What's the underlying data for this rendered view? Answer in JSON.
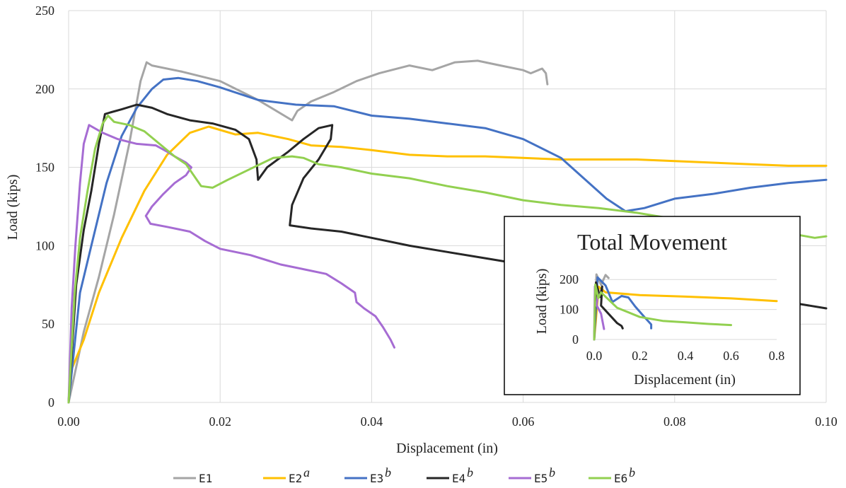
{
  "chart_data": {
    "type": "line",
    "xlabel": "Displacement (in)",
    "ylabel": "Load (kips)",
    "xlim": [
      0,
      0.1
    ],
    "ylim": [
      0,
      250
    ],
    "x_ticks": [
      "0.00",
      "0.02",
      "0.04",
      "0.06",
      "0.08",
      "0.10"
    ],
    "y_ticks": [
      "0",
      "50",
      "100",
      "150",
      "200",
      "250"
    ],
    "grid": true,
    "legend_position": "bottom",
    "series": [
      {
        "name": "E1",
        "sup": "",
        "color": "#a5a5a5",
        "points": [
          [
            0,
            0
          ],
          [
            0.002,
            45
          ],
          [
            0.004,
            80
          ],
          [
            0.006,
            120
          ],
          [
            0.008,
            165
          ],
          [
            0.0095,
            205
          ],
          [
            0.0103,
            217
          ],
          [
            0.011,
            215
          ],
          [
            0.015,
            211
          ],
          [
            0.02,
            205
          ],
          [
            0.025,
            193
          ],
          [
            0.0295,
            180
          ],
          [
            0.0302,
            186
          ],
          [
            0.032,
            192
          ],
          [
            0.035,
            198
          ],
          [
            0.038,
            205
          ],
          [
            0.041,
            210
          ],
          [
            0.045,
            215
          ],
          [
            0.048,
            212
          ],
          [
            0.051,
            217
          ],
          [
            0.054,
            218
          ],
          [
            0.057,
            215
          ],
          [
            0.06,
            212
          ],
          [
            0.061,
            210
          ],
          [
            0.0625,
            213
          ],
          [
            0.063,
            210
          ],
          [
            0.0632,
            203
          ]
        ]
      },
      {
        "name": "E2",
        "sup": "a",
        "color": "#ffc000",
        "points": [
          [
            0,
            0
          ],
          [
            0.0003,
            20
          ],
          [
            0.002,
            40
          ],
          [
            0.004,
            70
          ],
          [
            0.007,
            105
          ],
          [
            0.01,
            135
          ],
          [
            0.013,
            158
          ],
          [
            0.016,
            172
          ],
          [
            0.0185,
            176
          ],
          [
            0.022,
            171
          ],
          [
            0.025,
            172
          ],
          [
            0.029,
            168
          ],
          [
            0.032,
            164
          ],
          [
            0.036,
            163
          ],
          [
            0.04,
            161
          ],
          [
            0.045,
            158
          ],
          [
            0.05,
            157
          ],
          [
            0.055,
            157
          ],
          [
            0.06,
            156
          ],
          [
            0.065,
            155
          ],
          [
            0.07,
            155
          ],
          [
            0.075,
            155
          ],
          [
            0.08,
            154
          ],
          [
            0.085,
            153
          ],
          [
            0.09,
            152
          ],
          [
            0.095,
            151
          ],
          [
            0.1,
            151
          ]
        ]
      },
      {
        "name": "E3",
        "sup": "b",
        "color": "#4472c4",
        "points": [
          [
            0,
            0
          ],
          [
            0.0015,
            70
          ],
          [
            0.003,
            100
          ],
          [
            0.005,
            140
          ],
          [
            0.007,
            170
          ],
          [
            0.009,
            188
          ],
          [
            0.011,
            200
          ],
          [
            0.0125,
            206
          ],
          [
            0.0145,
            207
          ],
          [
            0.017,
            205
          ],
          [
            0.02,
            201
          ],
          [
            0.025,
            193
          ],
          [
            0.03,
            190
          ],
          [
            0.035,
            189
          ],
          [
            0.04,
            183
          ],
          [
            0.045,
            181
          ],
          [
            0.05,
            178
          ],
          [
            0.055,
            175
          ],
          [
            0.06,
            168
          ],
          [
            0.065,
            156
          ],
          [
            0.068,
            143
          ],
          [
            0.071,
            130
          ],
          [
            0.0735,
            122
          ],
          [
            0.076,
            124
          ],
          [
            0.08,
            130
          ],
          [
            0.085,
            133
          ],
          [
            0.09,
            137
          ],
          [
            0.095,
            140
          ],
          [
            0.1,
            142
          ]
        ]
      },
      {
        "name": "E4",
        "sup": "b",
        "color": "#262626",
        "points": [
          [
            0,
            0
          ],
          [
            0.001,
            75
          ],
          [
            0.002,
            110
          ],
          [
            0.003,
            135
          ],
          [
            0.004,
            165
          ],
          [
            0.0048,
            184
          ],
          [
            0.0055,
            185
          ],
          [
            0.007,
            187
          ],
          [
            0.009,
            190
          ],
          [
            0.011,
            188
          ],
          [
            0.013,
            184
          ],
          [
            0.016,
            180
          ],
          [
            0.019,
            178
          ],
          [
            0.022,
            174
          ],
          [
            0.0238,
            168
          ],
          [
            0.0248,
            155
          ],
          [
            0.025,
            142
          ],
          [
            0.0262,
            150
          ],
          [
            0.029,
            160
          ],
          [
            0.031,
            168
          ],
          [
            0.033,
            175
          ],
          [
            0.0348,
            177
          ],
          [
            0.0346,
            168
          ],
          [
            0.033,
            155
          ],
          [
            0.031,
            143
          ],
          [
            0.0295,
            126
          ],
          [
            0.0292,
            113
          ],
          [
            0.032,
            111
          ],
          [
            0.036,
            109
          ],
          [
            0.04,
            105
          ],
          [
            0.045,
            100
          ],
          [
            0.05,
            96
          ],
          [
            0.055,
            92
          ],
          [
            0.06,
            88
          ],
          [
            0.065,
            84
          ],
          [
            0.07,
            80
          ],
          [
            0.075,
            76
          ],
          [
            0.08,
            72
          ],
          [
            0.085,
            70
          ],
          [
            0.09,
            66
          ],
          [
            0.095,
            64
          ],
          [
            0.1,
            60
          ]
        ]
      },
      {
        "name": "E5",
        "sup": "b",
        "color": "#a66cd3",
        "points": [
          [
            0,
            0
          ],
          [
            0.0004,
            60
          ],
          [
            0.0009,
            100
          ],
          [
            0.0015,
            140
          ],
          [
            0.002,
            165
          ],
          [
            0.0027,
            177
          ],
          [
            0.0045,
            172
          ],
          [
            0.0065,
            168
          ],
          [
            0.009,
            165
          ],
          [
            0.0115,
            164
          ],
          [
            0.013,
            160
          ],
          [
            0.014,
            157
          ],
          [
            0.0155,
            153
          ],
          [
            0.0162,
            150
          ],
          [
            0.0155,
            145
          ],
          [
            0.014,
            140
          ],
          [
            0.0125,
            133
          ],
          [
            0.011,
            125
          ],
          [
            0.0102,
            119
          ],
          [
            0.0108,
            114
          ],
          [
            0.013,
            112
          ],
          [
            0.016,
            109
          ],
          [
            0.018,
            103
          ],
          [
            0.02,
            98
          ],
          [
            0.024,
            94
          ],
          [
            0.028,
            88
          ],
          [
            0.031,
            85
          ],
          [
            0.034,
            82
          ],
          [
            0.036,
            76
          ],
          [
            0.0378,
            70
          ],
          [
            0.038,
            64
          ],
          [
            0.039,
            60
          ],
          [
            0.0405,
            55
          ],
          [
            0.0415,
            48
          ],
          [
            0.0425,
            40
          ],
          [
            0.043,
            35
          ]
        ]
      },
      {
        "name": "E6",
        "sup": "b",
        "color": "#92d050",
        "points": [
          [
            0,
            0
          ],
          [
            0.0008,
            70
          ],
          [
            0.0015,
            105
          ],
          [
            0.0025,
            135
          ],
          [
            0.0035,
            162
          ],
          [
            0.0045,
            178
          ],
          [
            0.0052,
            183
          ],
          [
            0.006,
            179
          ],
          [
            0.008,
            177
          ],
          [
            0.01,
            173
          ],
          [
            0.012,
            165
          ],
          [
            0.014,
            157
          ],
          [
            0.0155,
            152
          ],
          [
            0.0165,
            145
          ],
          [
            0.0175,
            138
          ],
          [
            0.019,
            137
          ],
          [
            0.021,
            142
          ],
          [
            0.024,
            149
          ],
          [
            0.027,
            156
          ],
          [
            0.0295,
            157
          ],
          [
            0.031,
            156
          ],
          [
            0.033,
            152
          ],
          [
            0.036,
            150
          ],
          [
            0.04,
            146
          ],
          [
            0.045,
            143
          ],
          [
            0.05,
            138
          ],
          [
            0.055,
            134
          ],
          [
            0.06,
            129
          ],
          [
            0.065,
            126
          ],
          [
            0.07,
            124
          ],
          [
            0.075,
            121
          ],
          [
            0.08,
            117
          ],
          [
            0.085,
            113
          ],
          [
            0.09,
            110
          ],
          [
            0.095,
            108
          ],
          [
            0.0985,
            105
          ],
          [
            0.1,
            106
          ]
        ]
      }
    ],
    "inset": {
      "title": "Total Movement",
      "xlabel": "Displacement (in)",
      "ylabel": "Load (kips)",
      "xlim": [
        0,
        0.8
      ],
      "ylim": [
        0,
        250
      ],
      "x_ticks": [
        "0.0",
        "0.2",
        "0.4",
        "0.6",
        "0.8"
      ],
      "y_ticks": [
        "0",
        "100",
        "200"
      ],
      "series": [
        {
          "name": "E1",
          "color": "#a5a5a5",
          "points": [
            [
              0,
              0
            ],
            [
              0.01,
              217
            ],
            [
              0.03,
              182
            ],
            [
              0.05,
              215
            ],
            [
              0.063,
              205
            ]
          ]
        },
        {
          "name": "E2",
          "color": "#ffc000",
          "points": [
            [
              0,
              0
            ],
            [
              0.02,
              176
            ],
            [
              0.05,
              157
            ],
            [
              0.2,
              148
            ],
            [
              0.4,
              143
            ],
            [
              0.6,
              137
            ],
            [
              0.8,
              128
            ]
          ]
        },
        {
          "name": "E3",
          "color": "#4472c4",
          "points": [
            [
              0,
              0
            ],
            [
              0.015,
              207
            ],
            [
              0.05,
              180
            ],
            [
              0.08,
              125
            ],
            [
              0.12,
              145
            ],
            [
              0.15,
              140
            ],
            [
              0.18,
              110
            ],
            [
              0.22,
              75
            ],
            [
              0.25,
              50
            ],
            [
              0.25,
              37
            ]
          ]
        },
        {
          "name": "E4",
          "color": "#262626",
          "points": [
            [
              0,
              0
            ],
            [
              0.008,
              190
            ],
            [
              0.025,
              142
            ],
            [
              0.035,
              177
            ],
            [
              0.03,
              113
            ],
            [
              0.06,
              88
            ],
            [
              0.1,
              55
            ],
            [
              0.12,
              45
            ],
            [
              0.125,
              37
            ]
          ]
        },
        {
          "name": "E5",
          "color": "#a66cd3",
          "points": [
            [
              0,
              0
            ],
            [
              0.003,
              177
            ],
            [
              0.016,
              150
            ],
            [
              0.011,
              114
            ],
            [
              0.03,
              86
            ],
            [
              0.043,
              35
            ]
          ]
        },
        {
          "name": "E6",
          "color": "#92d050",
          "points": [
            [
              0,
              0
            ],
            [
              0.005,
              183
            ],
            [
              0.018,
              138
            ],
            [
              0.03,
              157
            ],
            [
              0.1,
              106
            ],
            [
              0.2,
              75
            ],
            [
              0.3,
              62
            ],
            [
              0.4,
              57
            ],
            [
              0.5,
              52
            ],
            [
              0.6,
              48
            ]
          ]
        }
      ]
    }
  }
}
